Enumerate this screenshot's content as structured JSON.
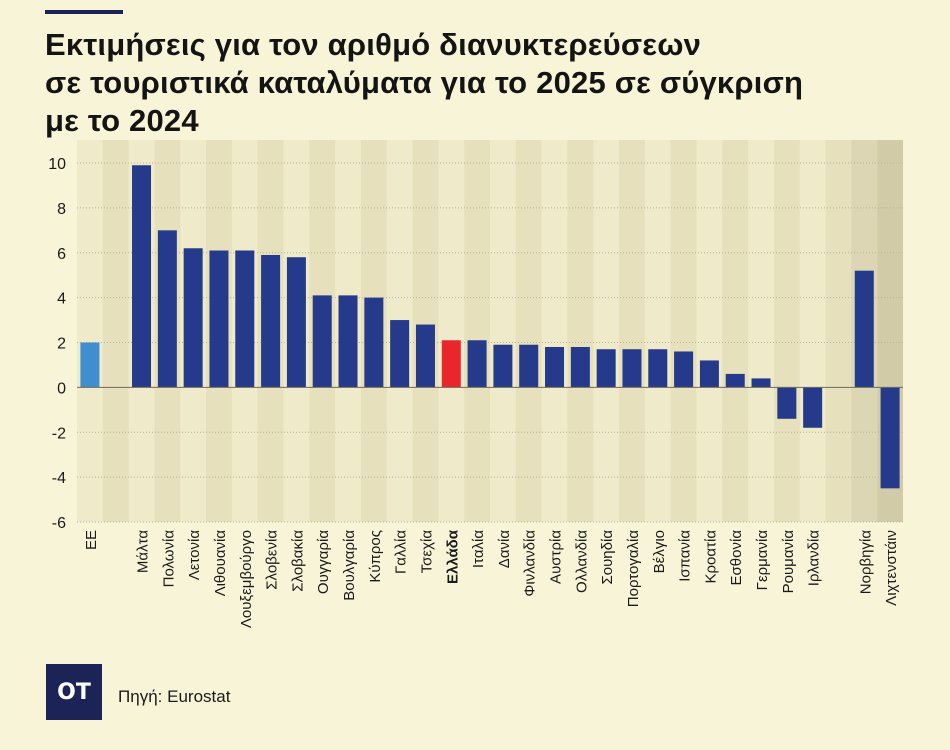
{
  "title_lines": [
    "Εκτιμήσεις για τον αριθμό διανυκτερεύσεων",
    "σε τουριστικά καταλύματα για το 2025 σε σύγκριση",
    "με το 2024"
  ],
  "source": "Πηγή: Eurostat",
  "logo_text": "OT",
  "chart_data": {
    "type": "bar",
    "title": "Εκτιμήσεις για τον αριθμό διανυκτερεύσεων σε τουριστικά καταλύματα για το 2025 σε σύγκριση με το 2024",
    "xlabel": "",
    "ylabel": "",
    "ylim": [
      -6,
      10
    ],
    "yticks": [
      10,
      8,
      6,
      4,
      2,
      0,
      -2,
      -4,
      -6
    ],
    "grid": "horizontal dotted",
    "categories": [
      "ΕΕ",
      "",
      "Μάλτα",
      "Πολωνία",
      "Λετονία",
      "Λιθουανία",
      "Λουξεμβούργο",
      "Σλοβενία",
      "Σλοβακία",
      "Ουγγαρία",
      "Βουλγαρία",
      "Κύπρος",
      "Γαλλία",
      "Τσεχία",
      "Ελλάδα",
      "Ιταλία",
      "Δανία",
      "Φινλανδία",
      "Αυστρία",
      "Ολλανδία",
      "Σουηδία",
      "Πορτογαλία",
      "Βέλγιο",
      "Ισπανία",
      "Κροατία",
      "Εσθονία",
      "Γερμανία",
      "Ρουμανία",
      "Ιρλανδία",
      "",
      "Νορβηγία",
      "Λιχτενστάιν"
    ],
    "values": [
      2.0,
      null,
      9.9,
      7.0,
      6.2,
      6.1,
      6.1,
      5.9,
      5.8,
      4.1,
      4.1,
      4.0,
      3.0,
      2.8,
      2.1,
      2.1,
      1.9,
      1.9,
      1.8,
      1.8,
      1.7,
      1.7,
      1.7,
      1.6,
      1.2,
      0.6,
      0.4,
      -1.4,
      -1.8,
      null,
      5.2,
      -4.5
    ],
    "highlight": {
      "ΕΕ": "#3e8ed0",
      "Ελλάδα": "#e8262b"
    },
    "colors": {
      "bar": "#253a8a",
      "eu": "#3e8ed0",
      "greece": "#e8262b",
      "plot_bg": "#efeac9",
      "stripe": "#e6e0bd",
      "non_eu_bg": "#dcd6b4",
      "non_eu_stripe": "#d2cba8"
    }
  }
}
